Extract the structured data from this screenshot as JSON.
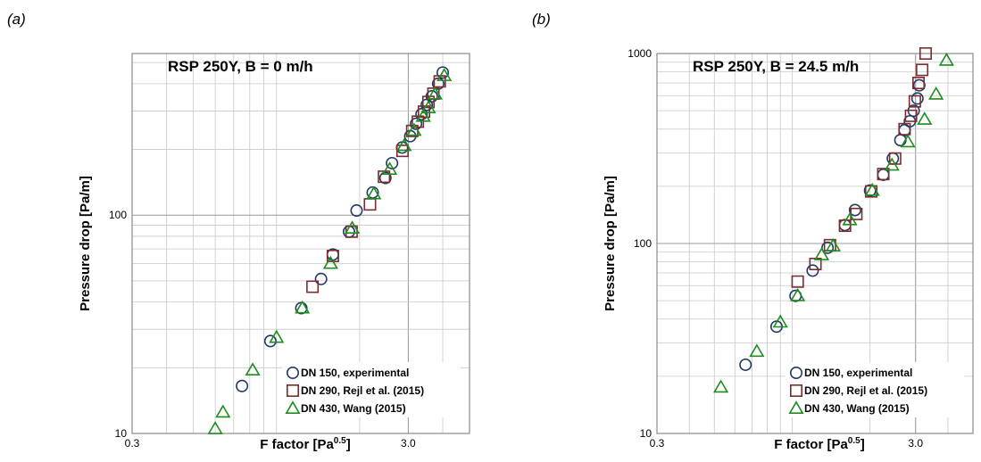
{
  "panels": [
    {
      "label": "(a)",
      "chart_data": {
        "type": "scatter",
        "title": "RSP 250Y, B = 0 m/h",
        "xlabel_base": "F factor [Pa",
        "xlabel_sup": "0.5",
        "xlabel_end": "]",
        "ylabel": "Pressure drop [Pa/m]",
        "x_scale": "log",
        "y_scale": "log",
        "xlim": [
          0.3,
          5.0
        ],
        "ylim": [
          10,
          550
        ],
        "x_tick_labels": [
          {
            "v": 0.3,
            "t": "0.3"
          },
          {
            "v": 3.0,
            "t": "3.0"
          }
        ],
        "y_tick_labels": [
          {
            "v": 10,
            "t": "10"
          },
          {
            "v": 100,
            "t": "100"
          }
        ],
        "grid": true,
        "legend_position": "bottom-right",
        "series": [
          {
            "name": "DN 150, experimental",
            "marker": "circle",
            "color": "#1f3864",
            "points": [
              [
                0.75,
                16.5
              ],
              [
                0.95,
                26.5
              ],
              [
                1.23,
                37.5
              ],
              [
                1.45,
                51
              ],
              [
                1.6,
                66
              ],
              [
                1.83,
                84
              ],
              [
                1.95,
                105
              ],
              [
                2.23,
                127
              ],
              [
                2.48,
                148
              ],
              [
                2.62,
                173
              ],
              [
                2.85,
                204
              ],
              [
                3.05,
                230
              ],
              [
                3.2,
                262
              ],
              [
                3.35,
                290
              ],
              [
                3.5,
                320
              ],
              [
                3.65,
                350
              ],
              [
                3.85,
                400
              ],
              [
                4.0,
                450
              ]
            ]
          },
          {
            "name": "DN 290, Rejl et al. (2015)",
            "marker": "square",
            "color": "#7b2c2c",
            "points": [
              [
                1.35,
                47
              ],
              [
                1.6,
                65
              ],
              [
                1.87,
                84
              ],
              [
                2.18,
                112
              ],
              [
                2.45,
                150
              ],
              [
                2.86,
                197
              ],
              [
                3.1,
                243
              ],
              [
                3.25,
                268
              ],
              [
                3.42,
                298
              ],
              [
                3.55,
                330
              ],
              [
                3.7,
                360
              ],
              [
                3.9,
                410
              ]
            ]
          },
          {
            "name": "DN 430, Wang (2015)",
            "marker": "triangle",
            "color": "#1f8c1f",
            "points": [
              [
                0.6,
                10.5
              ],
              [
                0.64,
                12.5
              ],
              [
                0.82,
                19.5
              ],
              [
                1.0,
                27.5
              ],
              [
                1.24,
                37.5
              ],
              [
                1.57,
                60
              ],
              [
                1.88,
                87
              ],
              [
                2.25,
                125
              ],
              [
                2.57,
                162
              ],
              [
                2.9,
                208
              ],
              [
                3.15,
                244
              ],
              [
                3.4,
                283
              ],
              [
                3.55,
                310
              ],
              [
                3.75,
                358
              ],
              [
                4.05,
                435
              ]
            ]
          }
        ]
      }
    },
    {
      "label": "(b)",
      "chart_data": {
        "type": "scatter",
        "title": "RSP 250Y, B = 24.5 m/h",
        "xlabel_base": "F factor [Pa",
        "xlabel_sup": "0.5",
        "xlabel_end": "]",
        "ylabel": "Pressure drop [Pa/m]",
        "x_scale": "log",
        "y_scale": "log",
        "xlim": [
          0.3,
          5.0
        ],
        "ylim": [
          10,
          1000
        ],
        "x_tick_labels": [
          {
            "v": 0.3,
            "t": "0.3"
          },
          {
            "v": 3.0,
            "t": "3.0"
          }
        ],
        "y_tick_labels": [
          {
            "v": 10,
            "t": "10"
          },
          {
            "v": 100,
            "t": "100"
          },
          {
            "v": 1000,
            "t": "1000"
          }
        ],
        "grid": true,
        "legend_position": "bottom-right",
        "series": [
          {
            "name": "DN 150, experimental",
            "marker": "circle",
            "color": "#1f3864",
            "points": [
              [
                0.66,
                23
              ],
              [
                0.87,
                36.5
              ],
              [
                1.03,
                53
              ],
              [
                1.2,
                72
              ],
              [
                1.37,
                95
              ],
              [
                1.6,
                125
              ],
              [
                1.75,
                150
              ],
              [
                2.0,
                190
              ],
              [
                2.25,
                230
              ],
              [
                2.45,
                280
              ],
              [
                2.62,
                350
              ],
              [
                2.72,
                395
              ],
              [
                2.85,
                440
              ],
              [
                2.95,
                500
              ],
              [
                3.05,
                580
              ],
              [
                3.1,
                680
              ]
            ]
          },
          {
            "name": "DN 290, Rejl et al. (2015)",
            "marker": "square",
            "color": "#7b2c2c",
            "points": [
              [
                1.05,
                63
              ],
              [
                1.23,
                78
              ],
              [
                1.4,
                98
              ],
              [
                1.6,
                124
              ],
              [
                1.77,
                143
              ],
              [
                2.02,
                188
              ],
              [
                2.25,
                232
              ],
              [
                2.5,
                280
              ],
              [
                2.72,
                400
              ],
              [
                2.88,
                470
              ],
              [
                2.98,
                560
              ],
              [
                3.08,
                700
              ],
              [
                3.18,
                820
              ],
              [
                3.28,
                1000
              ]
            ]
          },
          {
            "name": "DN 430, Wang (2015)",
            "marker": "triangle",
            "color": "#1f8c1f",
            "points": [
              [
                0.53,
                17.5
              ],
              [
                0.73,
                27
              ],
              [
                0.9,
                38.5
              ],
              [
                1.05,
                53
              ],
              [
                1.3,
                87
              ],
              [
                1.44,
                97
              ],
              [
                1.67,
                133
              ],
              [
                2.04,
                190
              ],
              [
                2.43,
                258
              ],
              [
                2.8,
                342
              ],
              [
                3.25,
                450
              ],
              [
                3.6,
                610
              ],
              [
                3.95,
                920
              ]
            ]
          }
        ]
      }
    }
  ]
}
